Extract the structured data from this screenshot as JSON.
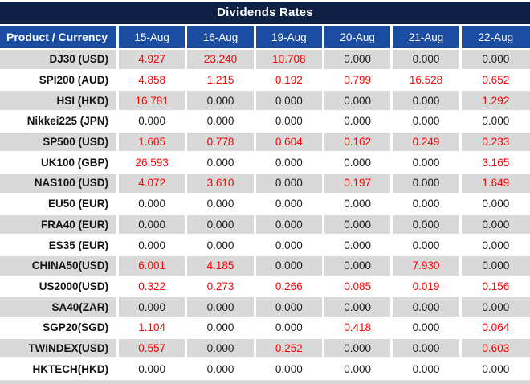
{
  "title": "Dividends Rates",
  "colors": {
    "title_bar_navy": "#0e2145",
    "header_blue": "#1a4da1",
    "alt_row_gray": "#d9d9d9",
    "nonzero_value_red": "#fe0000",
    "zero_value_black": "#1c1c1c"
  },
  "table": {
    "header": {
      "product_label": "Product / Currency",
      "dates": [
        "15-Aug",
        "16-Aug",
        "19-Aug",
        "20-Aug",
        "21-Aug",
        "22-Aug"
      ]
    },
    "rows": [
      {
        "product": "DJ30 (USD)",
        "values": [
          "4.927",
          "23.240",
          "10.708",
          "0.000",
          "0.000",
          "0.000"
        ]
      },
      {
        "product": "SPI200 (AUD)",
        "values": [
          "4.858",
          "1.215",
          "0.192",
          "0.799",
          "16.528",
          "0.652"
        ]
      },
      {
        "product": "HSI (HKD)",
        "values": [
          "16.781",
          "0.000",
          "0.000",
          "0.000",
          "0.000",
          "1.292"
        ]
      },
      {
        "product": "Nikkei225 (JPN)",
        "values": [
          "0.000",
          "0.000",
          "0.000",
          "0.000",
          "0.000",
          "0.000"
        ]
      },
      {
        "product": "SP500 (USD)",
        "values": [
          "1.605",
          "0.778",
          "0.604",
          "0.162",
          "0.249",
          "0.233"
        ]
      },
      {
        "product": "UK100 (GBP)",
        "values": [
          "26.593",
          "0.000",
          "0.000",
          "0.000",
          "0.000",
          "3.165"
        ]
      },
      {
        "product": "NAS100 (USD)",
        "values": [
          "4.072",
          "3.610",
          "0.000",
          "0.197",
          "0.000",
          "1.649"
        ]
      },
      {
        "product": "EU50 (EUR)",
        "values": [
          "0.000",
          "0.000",
          "0.000",
          "0.000",
          "0.000",
          "0.000"
        ]
      },
      {
        "product": "FRA40 (EUR)",
        "values": [
          "0.000",
          "0.000",
          "0.000",
          "0.000",
          "0.000",
          "0.000"
        ]
      },
      {
        "product": "ES35 (EUR)",
        "values": [
          "0.000",
          "0.000",
          "0.000",
          "0.000",
          "0.000",
          "0.000"
        ]
      },
      {
        "product": "CHINA50(USD)",
        "values": [
          "6.001",
          "4.185",
          "0.000",
          "0.000",
          "7.930",
          "0.000"
        ]
      },
      {
        "product": "US2000(USD)",
        "values": [
          "0.322",
          "0.273",
          "0.266",
          "0.085",
          "0.019",
          "0.156"
        ]
      },
      {
        "product": "SA40(ZAR)",
        "values": [
          "0.000",
          "0.000",
          "0.000",
          "0.000",
          "0.000",
          "0.000"
        ]
      },
      {
        "product": "SGP20(SGD)",
        "values": [
          "1.104",
          "0.000",
          "0.000",
          "0.418",
          "0.000",
          "0.064"
        ]
      },
      {
        "product": "TWINDEX(USD)",
        "values": [
          "0.557",
          "0.000",
          "0.252",
          "0.000",
          "0.000",
          "0.603"
        ]
      },
      {
        "product": "HKTECH(HKD)",
        "values": [
          "0.000",
          "0.000",
          "0.000",
          "0.000",
          "0.000",
          "0.000"
        ]
      }
    ]
  }
}
